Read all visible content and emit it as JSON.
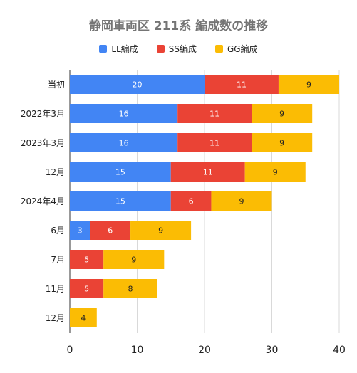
{
  "chart_data": {
    "type": "bar",
    "orientation": "horizontal",
    "stacked": true,
    "title": "静岡車両区 211系 編成数の推移",
    "categories": [
      "当初",
      "2022年3月",
      "2023年3月",
      "12月",
      "2024年4月",
      "6月",
      "7月",
      "11月",
      "12月"
    ],
    "series": [
      {
        "name": "LL編成",
        "color": "#4285f4",
        "values": [
          20,
          16,
          16,
          15,
          15,
          3,
          0,
          0,
          0
        ]
      },
      {
        "name": "SS編成",
        "color": "#ea4335",
        "values": [
          11,
          11,
          11,
          11,
          6,
          6,
          5,
          5,
          0
        ]
      },
      {
        "name": "GG編成",
        "color": "#fbbc04",
        "values": [
          9,
          9,
          9,
          9,
          9,
          9,
          9,
          8,
          4
        ]
      }
    ],
    "xlim": [
      0,
      40
    ],
    "xticks": [
      0,
      10,
      20,
      30,
      40
    ],
    "grid": true,
    "legend_position": "top"
  }
}
